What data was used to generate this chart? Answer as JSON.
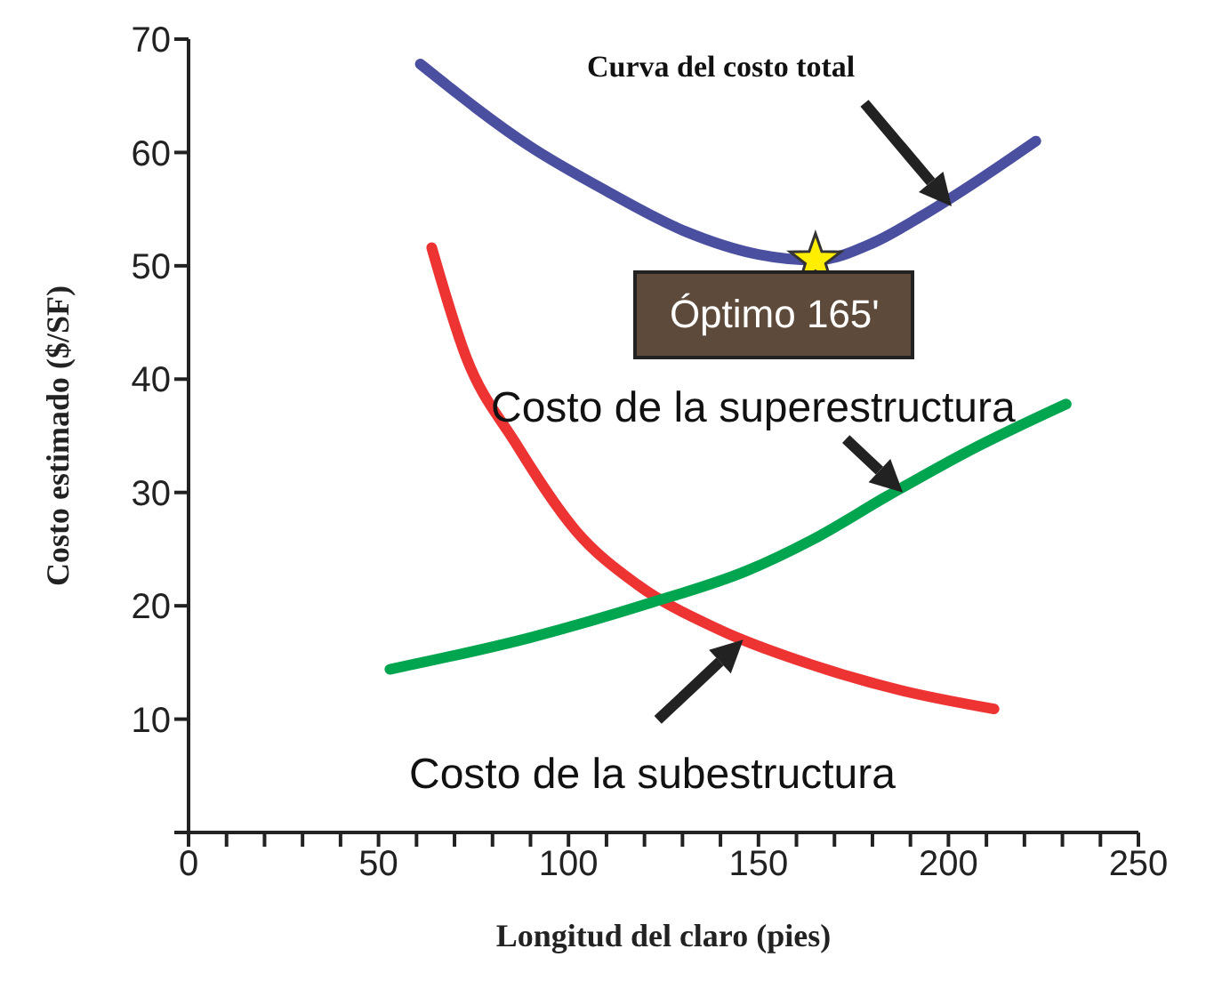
{
  "chart_data": {
    "type": "line",
    "xlabel": "Longitud del claro (pies)",
    "ylabel": "Costo estimado ($/SF)",
    "xlim": [
      0,
      250
    ],
    "ylim": [
      0,
      70
    ],
    "xticks": [
      0,
      {
        "value": 10,
        "label": null
      },
      {
        "value": 20,
        "label": null
      },
      {
        "value": 30,
        "label": null
      },
      {
        "value": 40,
        "label": null
      },
      50,
      {
        "value": 60,
        "label": null
      },
      {
        "value": 70,
        "label": null
      },
      {
        "value": 80,
        "label": null
      },
      {
        "value": 90,
        "label": null
      },
      100,
      {
        "value": 110,
        "label": null
      },
      {
        "value": 120,
        "label": null
      },
      {
        "value": 130,
        "label": null
      },
      {
        "value": 140,
        "label": null
      },
      150,
      {
        "value": 160,
        "label": null
      },
      {
        "value": 170,
        "label": null
      },
      {
        "value": 180,
        "label": null
      },
      {
        "value": 190,
        "label": null
      },
      200,
      {
        "value": 210,
        "label": null
      },
      {
        "value": 220,
        "label": null
      },
      {
        "value": 230,
        "label": null
      },
      {
        "value": 240,
        "label": null
      },
      250
    ],
    "yticks": [
      {
        "value": 0,
        "label": null
      },
      10,
      20,
      30,
      40,
      50,
      60,
      70
    ],
    "grid": false,
    "legend": false,
    "line_style": "solid",
    "marker": "none",
    "series": [
      {
        "color": "#4a4fa0",
        "x": [
          61,
          90,
          110,
          131,
          150,
          165,
          180,
          193,
          209,
          223
        ],
        "values": [
          67.8,
          60.5,
          56.6,
          53,
          51,
          50.5,
          52,
          54.4,
          57.8,
          61
        ]
      },
      {
        "color": "#ee3333",
        "x": [
          64,
          73,
          86,
          102,
          118,
          139,
          164,
          188,
          212
        ],
        "values": [
          51.6,
          42,
          34.4,
          26.6,
          21.9,
          18,
          14.8,
          12.5,
          10.9
        ]
      },
      {
        "color": "#00a550",
        "x": [
          53,
          90,
          122,
          147,
          164,
          184,
          205,
          231
        ],
        "values": [
          14.4,
          17.2,
          20.3,
          23.1,
          25.8,
          29.7,
          33.6,
          37.8
        ]
      },
      {
        "type": "scatter",
        "marker": "star",
        "color": "#ffee00",
        "x": [
          165
        ],
        "values": [
          50.5
        ]
      }
    ],
    "annotations": [
      "Curva del costo total",
      {
        "text": "Óptimo 165'",
        "x": 165,
        "y": 50.5
      },
      {
        "text": "Costo de la superestructura",
        "x": 188,
        "y": 30
      },
      {
        "text": "Costo de la subestructura",
        "x": 146,
        "y": 17
      }
    ]
  }
}
